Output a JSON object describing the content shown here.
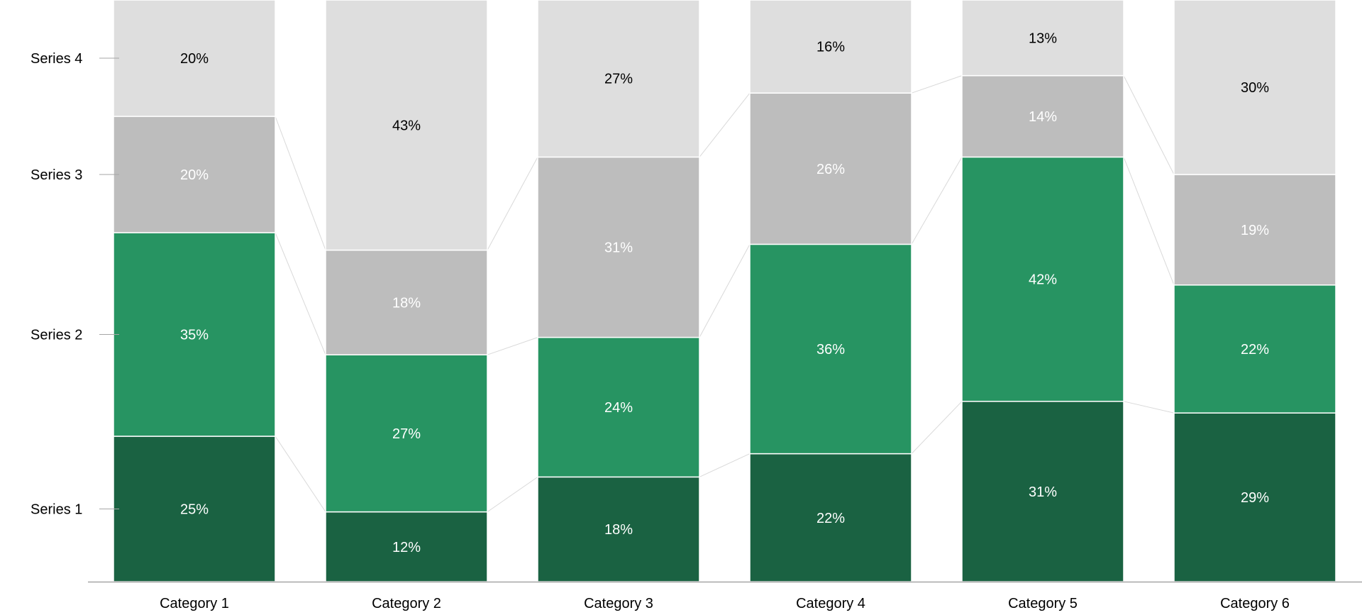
{
  "chart_data": {
    "type": "bar",
    "stacked": true,
    "normalized": true,
    "categories": [
      "Category 1",
      "Category 2",
      "Category 3",
      "Category 4",
      "Category 5",
      "Category 6"
    ],
    "series": [
      {
        "name": "Series 1",
        "values": [
          25,
          12,
          18,
          22,
          31,
          29
        ]
      },
      {
        "name": "Series 2",
        "values": [
          35,
          27,
          24,
          36,
          42,
          22
        ]
      },
      {
        "name": "Series 3",
        "values": [
          20,
          18,
          31,
          26,
          14,
          19
        ]
      },
      {
        "name": "Series 4",
        "values": [
          20,
          43,
          27,
          16,
          13,
          30
        ]
      }
    ],
    "colors": [
      "#1a6242",
      "#279462",
      "#bdbdbd",
      "#dedede"
    ],
    "label_colors": [
      "#ffffff",
      "#ffffff",
      "#ffffff",
      "#000000"
    ],
    "value_suffix": "%",
    "series_lines": true,
    "legend_placement": "left",
    "ylim": [
      0,
      100
    ],
    "grid": false
  }
}
